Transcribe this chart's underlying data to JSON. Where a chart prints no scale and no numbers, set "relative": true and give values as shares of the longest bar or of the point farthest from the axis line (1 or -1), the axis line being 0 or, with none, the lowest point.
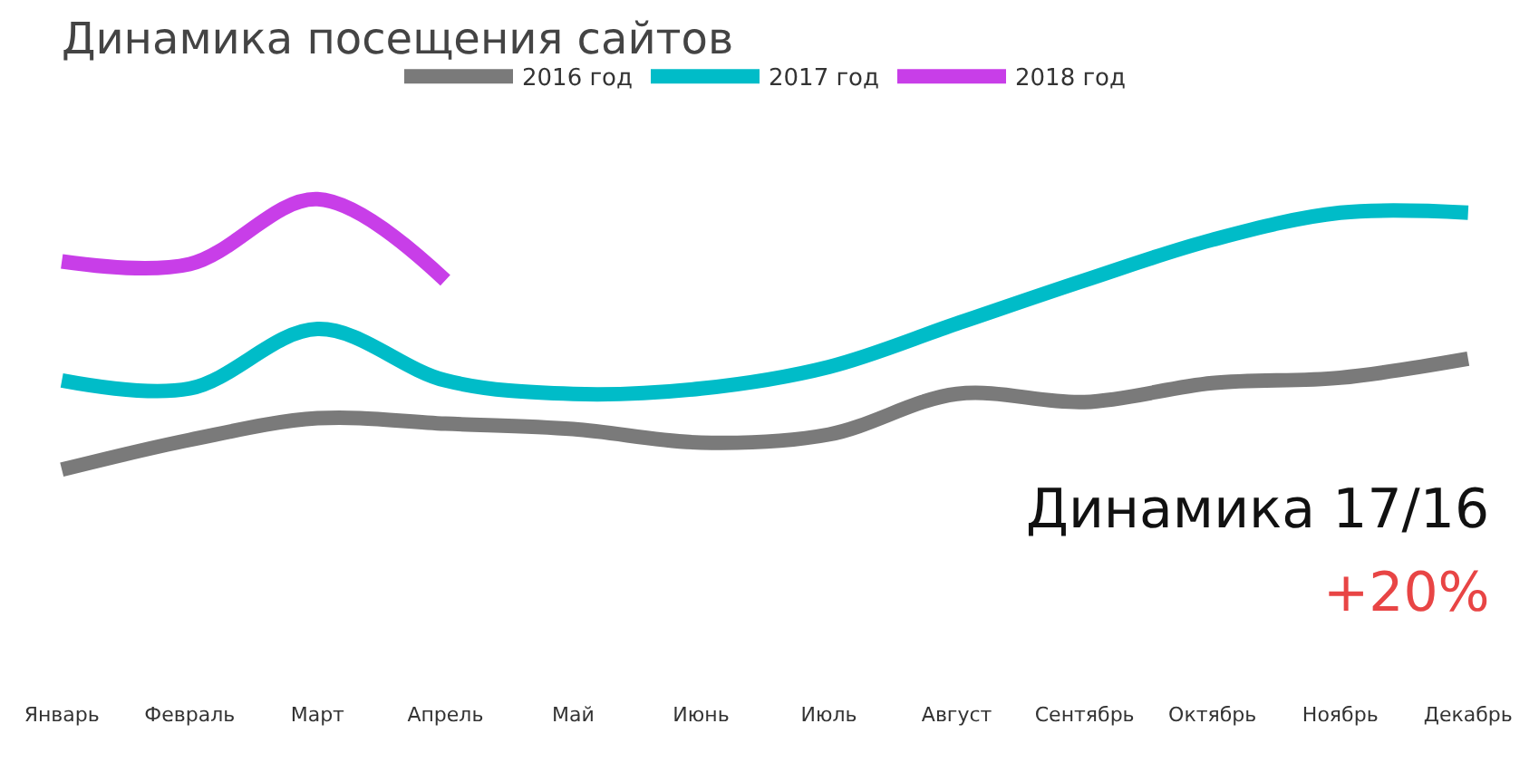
{
  "chart_data": {
    "type": "line",
    "title": "Динамика посещения сайтов",
    "relative": true,
    "categories": [
      "Январь",
      "Февраль",
      "Март",
      "Апрель",
      "Май",
      "Июнь",
      "Июль",
      "Август",
      "Сентябрь",
      "Октябрь",
      "Ноябрь",
      "Декабрь"
    ],
    "series": [
      {
        "name": "2016 год",
        "color": "#7a7a7a",
        "values": [
          0,
          0.11,
          0.19,
          0.17,
          0.15,
          0.1,
          0.13,
          0.28,
          0.25,
          0.32,
          0.34,
          0.41
        ]
      },
      {
        "name": "2017 год",
        "color": "#00bcc8",
        "values": [
          0.33,
          0.3,
          0.52,
          0.33,
          0.28,
          0.3,
          0.38,
          0.54,
          0.7,
          0.85,
          0.95,
          0.95
        ]
      },
      {
        "name": "2018 год",
        "color": "#c83ee8",
        "values": [
          0.77,
          0.76,
          1,
          0.7,
          null,
          null,
          null,
          null,
          null,
          null,
          null,
          null
        ]
      }
    ],
    "annotations": [
      "Динамика 17/16",
      "+20%"
    ],
    "legend": "top",
    "marker": "none",
    "line_style": "solid"
  }
}
